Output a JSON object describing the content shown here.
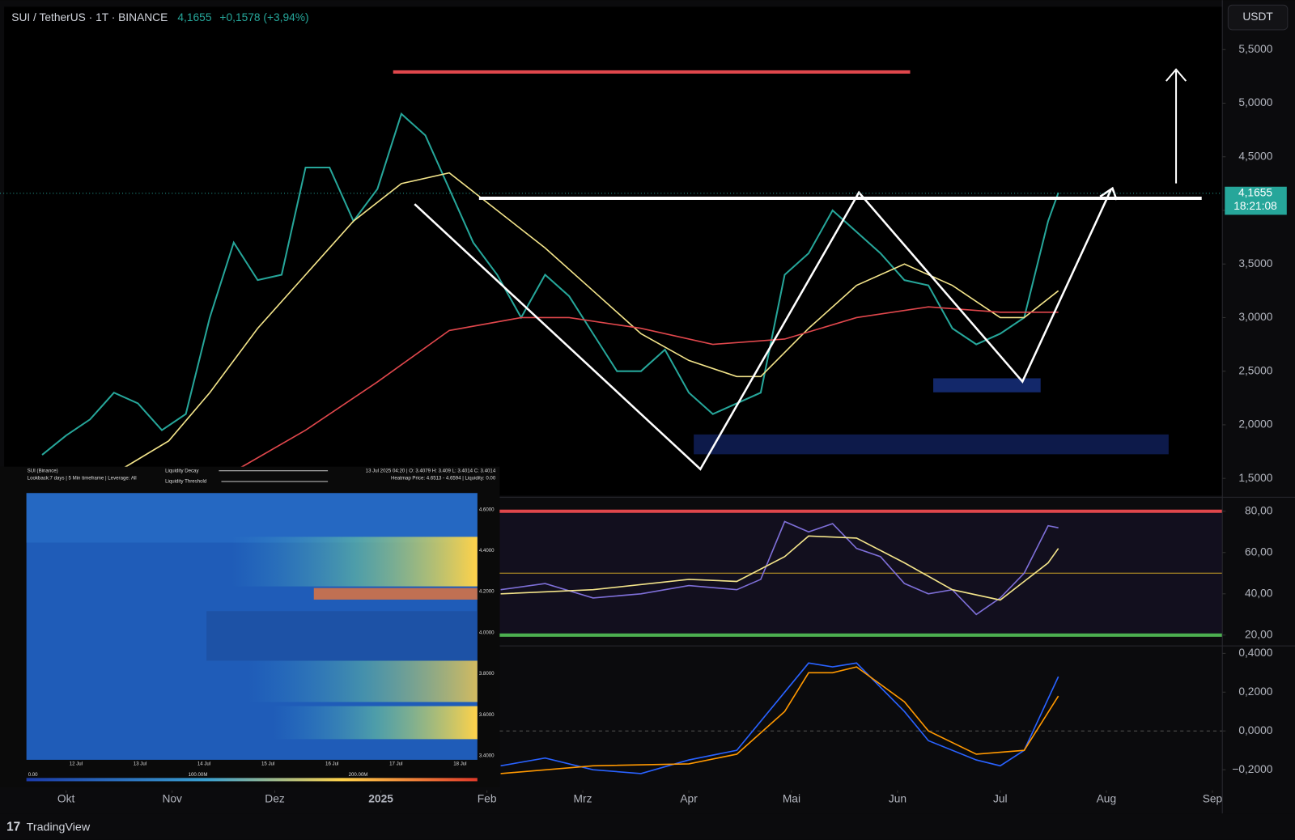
{
  "header": {
    "symbol": "SUI / TetherUS · 1T · BINANCE",
    "price": "4,1655",
    "change": "+0,1578 (+3,94%)",
    "currency": "USDT",
    "last_price": "4,1655",
    "countdown": "18:21:08",
    "brand": "TradingView"
  },
  "inset": {
    "title": "SUI (Binance)",
    "settings": "Lookback:7 days | 5 Min timeframe | Leverage: All",
    "controls": [
      "Liquidity Decay",
      "Liquidity Threshold"
    ],
    "ohlc": "13 Jul 2025 04:20 | O: 3.4079 H: 3.409 L: 3.4014 C: 3.4014",
    "heatmap_info": "Heatmap Price: 4.6513 - 4.6594 | Liquidity: 0.00",
    "yticks": [
      "4.6000",
      "4.4000",
      "4.2000",
      "4.0000",
      "3.8000",
      "3.6000",
      "3.4000"
    ],
    "xticks": [
      "12 Jul",
      "13 Jul",
      "14 Jul",
      "15 Jul",
      "16 Jul",
      "17 Jul",
      "18 Jul"
    ],
    "colorbar": [
      "0.00",
      "100.00M",
      "200.00M"
    ]
  },
  "chart_data": [
    {
      "type": "line",
      "xlim": [
        -18.1,
        337.9
      ],
      "ylim": [
        1.34,
        5.9
      ],
      "xticks": [
        {
          "value": 0,
          "label": "Okt"
        },
        {
          "value": 31,
          "label": "Nov"
        },
        {
          "value": 61,
          "label": "Dez"
        },
        {
          "value": 92,
          "label": "2025"
        },
        {
          "value": 123,
          "label": "Feb"
        },
        {
          "value": 151,
          "label": "Mrz"
        },
        {
          "value": 182,
          "label": "Apr"
        },
        {
          "value": 212,
          "label": "Mai"
        },
        {
          "value": 243,
          "label": "Jun"
        },
        {
          "value": 273,
          "label": "Jul"
        },
        {
          "value": 304,
          "label": "Aug"
        },
        {
          "value": 335,
          "label": "Sep"
        }
      ],
      "yticks": [
        {
          "value": 5.5,
          "label": "5,5000"
        },
        {
          "value": 5,
          "label": "5,0000"
        },
        {
          "value": 4.5,
          "label": "4,5000"
        },
        {
          "value": 4,
          "label": "4,0000"
        },
        {
          "value": 3.5,
          "label": "3,5000"
        },
        {
          "value": 3,
          "label": "3,0000"
        },
        {
          "value": 2.5,
          "label": "2,5000"
        },
        {
          "value": 2,
          "label": "2,0000"
        },
        {
          "value": 1.5,
          "label": "1,5000"
        }
      ],
      "series": [
        {
          "color": "#26a69a",
          "x": [
            -7,
            0,
            7,
            14,
            21,
            28,
            35,
            42,
            49,
            56,
            63,
            70,
            77,
            84,
            91,
            98,
            105,
            112,
            119,
            126,
            133,
            140,
            147,
            154,
            161,
            168,
            175,
            182,
            189,
            196,
            203,
            210,
            217,
            224,
            231,
            238,
            245,
            252,
            259,
            266,
            273,
            280,
            287,
            290
          ],
          "values": [
            1.72,
            1.9,
            2.05,
            2.3,
            2.2,
            1.95,
            2.1,
            3.0,
            3.7,
            3.35,
            3.4,
            4.4,
            4.4,
            3.9,
            4.2,
            4.9,
            4.7,
            4.2,
            3.7,
            3.4,
            3.0,
            3.4,
            3.2,
            2.85,
            2.5,
            2.5,
            2.7,
            2.3,
            2.1,
            2.2,
            2.3,
            3.4,
            3.6,
            4.0,
            3.8,
            3.6,
            3.35,
            3.3,
            2.9,
            2.75,
            2.85,
            3.0,
            3.9,
            4.1655
          ]
        },
        {
          "color": "#f3e48a",
          "x": [
            17,
            30,
            42,
            56,
            70,
            84,
            98,
            112,
            126,
            140,
            154,
            168,
            182,
            196,
            203,
            217,
            231,
            245,
            259,
            273,
            280,
            290
          ],
          "values": [
            1.6,
            1.85,
            2.3,
            2.9,
            3.4,
            3.9,
            4.25,
            4.35,
            4.0,
            3.65,
            3.25,
            2.85,
            2.6,
            2.45,
            2.45,
            2.9,
            3.3,
            3.5,
            3.3,
            3.0,
            3.0,
            3.25
          ]
        },
        {
          "color": "#e0474c",
          "x": [
            51,
            70,
            91,
            112,
            133,
            147,
            168,
            189,
            210,
            231,
            252,
            273,
            290
          ],
          "values": [
            1.6,
            1.95,
            2.4,
            2.88,
            3.0,
            3.0,
            2.9,
            2.75,
            2.8,
            3.0,
            3.1,
            3.05,
            3.05
          ]
        }
      ]
    },
    {
      "type": "line",
      "xlim": [
        -18.1,
        337.9
      ],
      "ylim": [
        14.4,
        85.6
      ],
      "yticks": [
        {
          "value": 80,
          "label": "80,00"
        },
        {
          "value": 60,
          "label": "60,00"
        },
        {
          "value": 40,
          "label": "40,00"
        },
        {
          "value": 20,
          "label": "20,00"
        }
      ],
      "hlines": [
        {
          "value": 80,
          "color": "#e0474c"
        },
        {
          "value": 50,
          "color": "#c9a227"
        },
        {
          "value": 20,
          "color": "#4caf50"
        }
      ],
      "series": [
        {
          "color": "#7e6fd8",
          "x": [
            127,
            140,
            154,
            168,
            182,
            196,
            203,
            210,
            217,
            224,
            231,
            238,
            245,
            252,
            259,
            266,
            273,
            280,
            287,
            290
          ],
          "values": [
            42,
            45,
            38,
            40,
            44,
            42,
            47,
            75,
            70,
            74,
            62,
            58,
            45,
            40,
            42,
            30,
            38,
            50,
            73,
            72
          ]
        },
        {
          "color": "#f3e48a",
          "x": [
            127,
            154,
            182,
            196,
            210,
            217,
            231,
            245,
            259,
            273,
            287,
            290
          ],
          "values": [
            40,
            42,
            47,
            46,
            58,
            68,
            67,
            55,
            42,
            37,
            55,
            62
          ]
        }
      ]
    },
    {
      "type": "line",
      "xlim": [
        -18.1,
        337.9
      ],
      "ylim": [
        -0.298,
        0.426
      ],
      "yticks": [
        {
          "value": 0.4,
          "label": "0,4000"
        },
        {
          "value": 0.2,
          "label": "0,2000"
        },
        {
          "value": 0,
          "label": "0,0000"
        },
        {
          "value": -0.2,
          "label": "−0,2000"
        }
      ],
      "hlines": [
        {
          "value": 0,
          "color": "#555555"
        }
      ],
      "series": [
        {
          "color": "#2962ff",
          "x": [
            127,
            140,
            154,
            168,
            182,
            196,
            210,
            217,
            224,
            231,
            245,
            252,
            266,
            273,
            280,
            290
          ],
          "values": [
            -0.18,
            -0.14,
            -0.2,
            -0.22,
            -0.15,
            -0.1,
            0.2,
            0.35,
            0.33,
            0.35,
            0.1,
            -0.05,
            -0.15,
            -0.18,
            -0.1,
            0.28
          ]
        },
        {
          "color": "#ff9800",
          "x": [
            127,
            154,
            182,
            196,
            210,
            217,
            224,
            231,
            245,
            252,
            266,
            280,
            290
          ],
          "values": [
            -0.22,
            -0.18,
            -0.17,
            -0.12,
            0.1,
            0.3,
            0.3,
            0.33,
            0.15,
            0,
            -0.12,
            -0.1,
            0.18
          ]
        }
      ]
    }
  ]
}
